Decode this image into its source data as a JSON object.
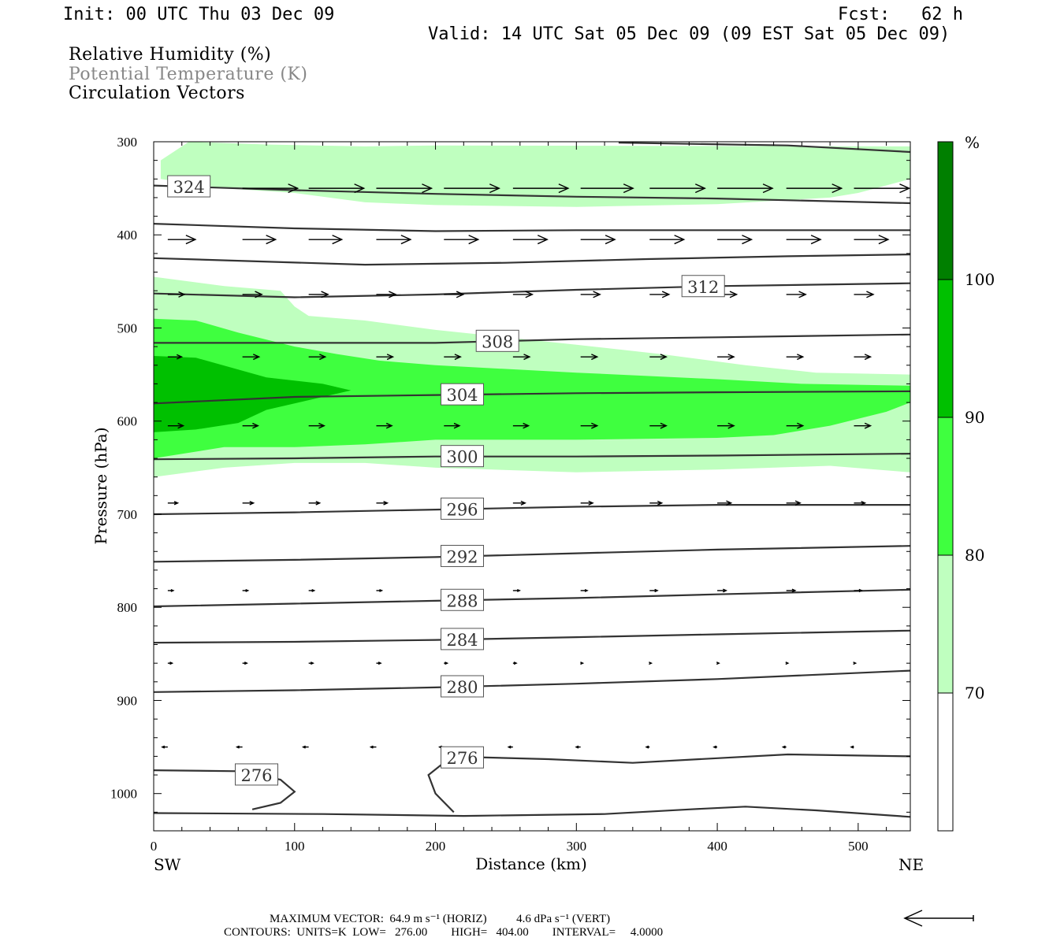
{
  "header": {
    "init": "Init: 00 UTC Thu 03 Dec 09",
    "fcst": "Fcst:   62 h",
    "valid": "Valid: 14 UTC Sat 05 Dec 09 (09 EST Sat 05 Dec 09)"
  },
  "legend": {
    "rh": "Relative Humidity (%)",
    "theta": "Potential Temperature (K)",
    "vectors": "Circulation Vectors"
  },
  "colors": {
    "rh70": "#bfffbf",
    "rh80": "#3fff3f",
    "rh90": "#00c000",
    "rh100": "#007f00",
    "theta_line": "#333333",
    "theta_legend": "#888888"
  },
  "footer": {
    "max_vector": "MAXIMUM VECTOR:  64.9 m s⁻¹ (HORIZ)          4.6 dPa s⁻¹ (VERT)",
    "contours": "CONTOURS:  UNITS=K  LOW=   276.00        HIGH=   404.00        INTERVAL=     4.0000"
  },
  "chart_data": {
    "type": "cross-section (filled contour + line contour + vectors)",
    "xlabel": "Distance (km)",
    "ylabel": "Pressure (hPa)",
    "xlim": [
      0,
      537
    ],
    "ylim": [
      1040,
      300
    ],
    "xticks": [
      0,
      100,
      200,
      300,
      400,
      500
    ],
    "yticks": [
      300,
      400,
      500,
      600,
      700,
      800,
      900,
      1000
    ],
    "x_end_labels": {
      "left": "SW",
      "right": "NE"
    },
    "colorbar": {
      "unit": "%",
      "levels": [
        70,
        80,
        90,
        100
      ]
    },
    "theta_contours": [
      {
        "label": "324",
        "label_x": 25,
        "points": [
          [
            0,
            347
          ],
          [
            100,
            352
          ],
          [
            200,
            356
          ],
          [
            300,
            359
          ],
          [
            400,
            361
          ],
          [
            537,
            366
          ]
        ]
      },
      {
        "label": "",
        "label_x": null,
        "points": [
          [
            330,
            301
          ],
          [
            450,
            304
          ],
          [
            537,
            311
          ]
        ]
      },
      {
        "label": "",
        "label_x": null,
        "points": [
          [
            0,
            388
          ],
          [
            100,
            393
          ],
          [
            200,
            396
          ],
          [
            300,
            395
          ],
          [
            400,
            395
          ],
          [
            537,
            395
          ]
        ]
      },
      {
        "label": "",
        "label_x": null,
        "points": [
          [
            0,
            425
          ],
          [
            150,
            432
          ],
          [
            250,
            430
          ],
          [
            350,
            426
          ],
          [
            450,
            423
          ],
          [
            537,
            421
          ]
        ]
      },
      {
        "label": "312",
        "label_x": 390,
        "points": [
          [
            0,
            463
          ],
          [
            100,
            467
          ],
          [
            200,
            464
          ],
          [
            300,
            459
          ],
          [
            400,
            455
          ],
          [
            537,
            452
          ]
        ]
      },
      {
        "label": "308",
        "label_x": 244,
        "points": [
          [
            0,
            516
          ],
          [
            200,
            516
          ],
          [
            300,
            512
          ],
          [
            400,
            510
          ],
          [
            537,
            507
          ]
        ]
      },
      {
        "label": "304",
        "label_x": 219,
        "points": [
          [
            0,
            581
          ],
          [
            100,
            574
          ],
          [
            200,
            572
          ],
          [
            300,
            570
          ],
          [
            400,
            569
          ],
          [
            537,
            568
          ]
        ]
      },
      {
        "label": "300",
        "label_x": 219,
        "points": [
          [
            0,
            641
          ],
          [
            100,
            640
          ],
          [
            200,
            638
          ],
          [
            300,
            638
          ],
          [
            400,
            637
          ],
          [
            537,
            635
          ]
        ]
      },
      {
        "label": "296",
        "label_x": 219,
        "points": [
          [
            0,
            700
          ],
          [
            100,
            698
          ],
          [
            200,
            695
          ],
          [
            300,
            692
          ],
          [
            400,
            690
          ],
          [
            537,
            690
          ]
        ]
      },
      {
        "label": "292",
        "label_x": 219,
        "points": [
          [
            0,
            751
          ],
          [
            100,
            749
          ],
          [
            200,
            746
          ],
          [
            300,
            742
          ],
          [
            400,
            738
          ],
          [
            537,
            734
          ]
        ]
      },
      {
        "label": "288",
        "label_x": 219,
        "points": [
          [
            0,
            799
          ],
          [
            100,
            796
          ],
          [
            200,
            793
          ],
          [
            300,
            790
          ],
          [
            400,
            786
          ],
          [
            537,
            781
          ]
        ]
      },
      {
        "label": "284",
        "label_x": 219,
        "points": [
          [
            0,
            838
          ],
          [
            100,
            837
          ],
          [
            200,
            835
          ],
          [
            300,
            832
          ],
          [
            400,
            829
          ],
          [
            537,
            825
          ]
        ]
      },
      {
        "label": "280",
        "label_x": 219,
        "points": [
          [
            0,
            891
          ],
          [
            100,
            889
          ],
          [
            200,
            886
          ],
          [
            300,
            882
          ],
          [
            400,
            877
          ],
          [
            537,
            868
          ]
        ]
      },
      {
        "label": "276",
        "label_x": 219,
        "points": [
          [
            537,
            960
          ],
          [
            450,
            958
          ],
          [
            400,
            962
          ],
          [
            340,
            967
          ],
          [
            280,
            963
          ],
          [
            230,
            961
          ],
          [
            210,
            962
          ],
          [
            195,
            980
          ],
          [
            200,
            1000
          ],
          [
            213,
            1020
          ]
        ]
      },
      {
        "label": "276",
        "label_x": 73,
        "points": [
          [
            0,
            975
          ],
          [
            60,
            976
          ],
          [
            90,
            985
          ],
          [
            100,
            998
          ],
          [
            90,
            1010
          ],
          [
            70,
            1017
          ]
        ]
      },
      {
        "label": "",
        "label_x": null,
        "points": [
          [
            0,
            1021
          ],
          [
            120,
            1022
          ],
          [
            220,
            1024
          ],
          [
            320,
            1022
          ],
          [
            380,
            1017
          ],
          [
            420,
            1014
          ],
          [
            470,
            1018
          ],
          [
            537,
            1025
          ]
        ]
      }
    ],
    "rh_regions": [
      {
        "level": 70,
        "points": [
          [
            5,
            320
          ],
          [
            25,
            300
          ],
          [
            80,
            303
          ],
          [
            150,
            305
          ],
          [
            200,
            304
          ],
          [
            537,
            305
          ],
          [
            537,
            340
          ],
          [
            500,
            355
          ],
          [
            480,
            360
          ],
          [
            400,
            367
          ],
          [
            300,
            370
          ],
          [
            200,
            368
          ],
          [
            150,
            365
          ],
          [
            100,
            355
          ],
          [
            50,
            350
          ],
          [
            5,
            340
          ]
        ]
      },
      {
        "level": 70,
        "points": [
          [
            0,
            445
          ],
          [
            50,
            455
          ],
          [
            90,
            460
          ],
          [
            100,
            477
          ],
          [
            110,
            487
          ],
          [
            150,
            492
          ],
          [
            200,
            502
          ],
          [
            250,
            510
          ],
          [
            300,
            518
          ],
          [
            360,
            528
          ],
          [
            420,
            540
          ],
          [
            470,
            548
          ],
          [
            537,
            550
          ],
          [
            537,
            655
          ],
          [
            480,
            648
          ],
          [
            400,
            652
          ],
          [
            300,
            655
          ],
          [
            200,
            650
          ],
          [
            150,
            645
          ],
          [
            100,
            645
          ],
          [
            50,
            650
          ],
          [
            0,
            660
          ]
        ]
      },
      {
        "level": 80,
        "points": [
          [
            0,
            490
          ],
          [
            30,
            492
          ],
          [
            60,
            505
          ],
          [
            100,
            520
          ],
          [
            130,
            528
          ],
          [
            160,
            535
          ],
          [
            200,
            540
          ],
          [
            300,
            548
          ],
          [
            400,
            555
          ],
          [
            460,
            560
          ],
          [
            537,
            562
          ],
          [
            537,
            580
          ],
          [
            520,
            590
          ],
          [
            480,
            605
          ],
          [
            440,
            615
          ],
          [
            400,
            618
          ],
          [
            300,
            620
          ],
          [
            200,
            620
          ],
          [
            150,
            625
          ],
          [
            100,
            628
          ],
          [
            50,
            628
          ],
          [
            0,
            640
          ]
        ]
      },
      {
        "level": 90,
        "points": [
          [
            0,
            530
          ],
          [
            30,
            532
          ],
          [
            80,
            553
          ],
          [
            120,
            560
          ],
          [
            140,
            567
          ],
          [
            120,
            574
          ],
          [
            80,
            588
          ],
          [
            60,
            602
          ],
          [
            30,
            609
          ],
          [
            0,
            612
          ]
        ]
      }
    ],
    "vectors": {
      "rows": [
        {
          "p": 350,
          "x": [
            10,
            63,
            110,
            158,
            206,
            255,
            303,
            352,
            400,
            449,
            497
          ],
          "u": [
            0.62,
            1,
            1,
            1,
            1,
            1,
            0.95,
            1,
            1,
            1,
            1
          ]
        },
        {
          "p": 405,
          "x": [
            10,
            63,
            110,
            158,
            206,
            255,
            303,
            352,
            400,
            449,
            497
          ],
          "u": [
            0.5,
            0.6,
            0.6,
            0.62,
            0.62,
            0.62,
            0.62,
            0.62,
            0.62,
            0.62,
            0.62
          ]
        },
        {
          "p": 464,
          "x": [
            10,
            63,
            110,
            158,
            206,
            255,
            303,
            352,
            400,
            449,
            497
          ],
          "u": [
            0.3,
            0.35,
            0.35,
            0.35,
            0.35,
            0.35,
            0.35,
            0.35,
            0.35,
            0.35,
            0.35
          ]
        },
        {
          "p": 531,
          "x": [
            10,
            63,
            110,
            158,
            206,
            255,
            303,
            352,
            400,
            449,
            497
          ],
          "u": [
            0.25,
            0.3,
            0.3,
            0.3,
            0.3,
            0.3,
            0.3,
            0.3,
            0.3,
            0.3,
            0.3
          ]
        },
        {
          "p": 605,
          "x": [
            10,
            63,
            110,
            158,
            206,
            255,
            303,
            352,
            400,
            449,
            497
          ],
          "u": [
            0.28,
            0.28,
            0.28,
            0.28,
            0.28,
            0.28,
            0.3,
            0.3,
            0.3,
            0.3,
            0.3
          ]
        },
        {
          "p": 688,
          "x": [
            10,
            63,
            110,
            158,
            206,
            255,
            303,
            352,
            400,
            449,
            497
          ],
          "u": [
            0.18,
            0.2,
            0.2,
            0.2,
            0.22,
            0.22,
            0.22,
            0.22,
            0.25,
            0.25,
            0.2
          ]
        },
        {
          "p": 782,
          "x": [
            10,
            63,
            110,
            158,
            206,
            255,
            303,
            352,
            400,
            449,
            497
          ],
          "u": [
            0.1,
            0.1,
            0.1,
            0.1,
            0.12,
            0.12,
            0.12,
            0.14,
            0.16,
            0.16,
            0.14
          ]
        },
        {
          "p": 860,
          "x": [
            10,
            63,
            110,
            158,
            206,
            255,
            303,
            352,
            400,
            449,
            497
          ],
          "u": [
            0.08,
            0.08,
            0.08,
            0.08,
            0.06,
            0.06,
            0.04,
            0.03,
            0.03,
            0.03,
            0.03
          ]
        },
        {
          "p": 950,
          "x": [
            10,
            63,
            110,
            158,
            206,
            255,
            303,
            352,
            400,
            449,
            497
          ],
          "u": [
            -0.1,
            -0.1,
            -0.1,
            -0.1,
            -0.08,
            -0.08,
            -0.08,
            -0.06,
            -0.06,
            -0.06,
            -0.05
          ]
        }
      ]
    }
  }
}
